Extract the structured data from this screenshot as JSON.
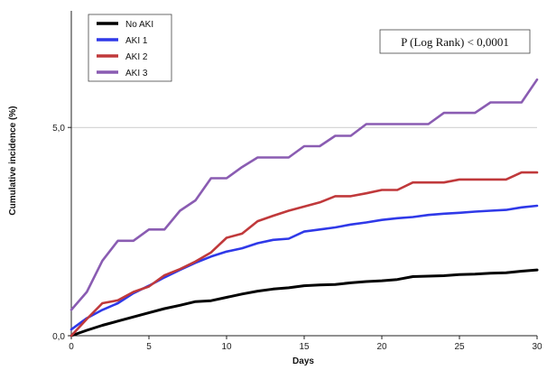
{
  "chart_data": {
    "type": "line",
    "title": "",
    "xlabel": "Days",
    "ylabel": "Cumulative incidence (%)",
    "xlim": [
      0,
      30
    ],
    "ylim": [
      0,
      7.8
    ],
    "xticks": [
      0,
      5,
      10,
      15,
      20,
      25,
      30
    ],
    "yticks": [
      0,
      5
    ],
    "ytick_labels": [
      "0,0",
      "5,0"
    ],
    "reference_line_y": 5,
    "annotation": "P (Log Rank) < 0,0001",
    "legend_position": "top-left",
    "series": [
      {
        "name": "No AKI",
        "color": "#000000",
        "x": [
          0,
          1,
          2,
          3,
          4,
          5,
          6,
          7,
          8,
          9,
          10,
          11,
          12,
          13,
          14,
          15,
          16,
          17,
          18,
          19,
          20,
          21,
          22,
          23,
          24,
          25,
          26,
          27,
          28,
          29,
          30
        ],
        "y": [
          0,
          0.13,
          0.25,
          0.35,
          0.45,
          0.55,
          0.65,
          0.73,
          0.82,
          0.84,
          0.92,
          1.0,
          1.07,
          1.12,
          1.15,
          1.2,
          1.22,
          1.23,
          1.27,
          1.3,
          1.32,
          1.35,
          1.42,
          1.43,
          1.44,
          1.47,
          1.48,
          1.5,
          1.51,
          1.55,
          1.58
        ]
      },
      {
        "name": "AKI 1",
        "color": "#2f39e8",
        "x": [
          0,
          1,
          2,
          3,
          4,
          5,
          6,
          7,
          8,
          9,
          10,
          11,
          12,
          13,
          14,
          15,
          16,
          17,
          18,
          19,
          20,
          21,
          22,
          23,
          24,
          25,
          26,
          27,
          28,
          29,
          30
        ],
        "y": [
          0.15,
          0.42,
          0.62,
          0.78,
          1.02,
          1.2,
          1.4,
          1.58,
          1.75,
          1.9,
          2.02,
          2.1,
          2.22,
          2.3,
          2.33,
          2.5,
          2.55,
          2.6,
          2.67,
          2.72,
          2.78,
          2.82,
          2.85,
          2.9,
          2.93,
          2.95,
          2.98,
          3.0,
          3.02,
          3.08,
          3.12
        ]
      },
      {
        "name": "AKI 2",
        "color": "#c0393b",
        "x": [
          0,
          1,
          2,
          3,
          4,
          5,
          6,
          7,
          8,
          9,
          10,
          11,
          12,
          13,
          14,
          15,
          16,
          17,
          18,
          19,
          20,
          21,
          22,
          23,
          24,
          25,
          26,
          27,
          28,
          29,
          30
        ],
        "y": [
          0,
          0.4,
          0.78,
          0.85,
          1.05,
          1.18,
          1.45,
          1.6,
          1.78,
          2.0,
          2.35,
          2.45,
          2.75,
          2.88,
          3.0,
          3.1,
          3.2,
          3.35,
          3.35,
          3.42,
          3.5,
          3.5,
          3.68,
          3.68,
          3.68,
          3.75,
          3.75,
          3.75,
          3.75,
          3.92,
          3.92
        ]
      },
      {
        "name": "AKI 3",
        "color": "#8a5cb2",
        "x": [
          0,
          1,
          2,
          3,
          4,
          5,
          6,
          7,
          8,
          9,
          10,
          11,
          12,
          13,
          14,
          15,
          16,
          17,
          18,
          19,
          20,
          21,
          22,
          23,
          24,
          25,
          26,
          27,
          28,
          29,
          30
        ],
        "y": [
          0.62,
          1.05,
          1.8,
          2.28,
          2.28,
          2.55,
          2.55,
          3.0,
          3.25,
          3.78,
          3.78,
          4.05,
          4.28,
          4.28,
          4.28,
          4.55,
          4.55,
          4.8,
          4.8,
          5.08,
          5.08,
          5.08,
          5.08,
          5.08,
          5.35,
          5.35,
          5.35,
          5.6,
          5.6,
          5.6,
          6.15
        ]
      }
    ]
  }
}
